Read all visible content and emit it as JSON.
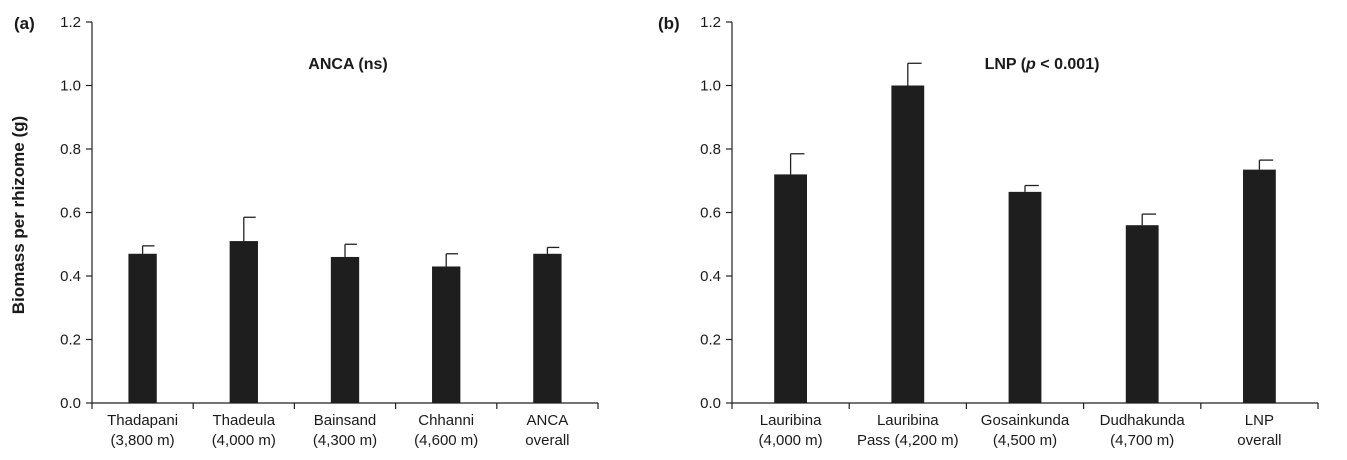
{
  "ylabel": "Biomass per rhizome (g)",
  "chart_data": [
    {
      "type": "bar",
      "panel_label": "(a)",
      "title": "ANCA (ns)",
      "title_parts": [
        "ANCA (ns)",
        "",
        ""
      ],
      "ylabel": "Biomass per rhizome (g)",
      "ylim": [
        0,
        1.2
      ],
      "yticks": [
        "0.0",
        "0.2",
        "0.4",
        "0.6",
        "0.8",
        "1.0",
        "1.2"
      ],
      "categories": [
        [
          "Thadapani",
          "(3,800 m)"
        ],
        [
          "Thadeula",
          "(4,000 m)"
        ],
        [
          "Bainsand",
          "(4,300 m)"
        ],
        [
          "Chhanni",
          "(4,600 m)"
        ],
        [
          "ANCA",
          "overall"
        ]
      ],
      "values": [
        0.47,
        0.51,
        0.46,
        0.43,
        0.47
      ],
      "errors": [
        0.025,
        0.075,
        0.04,
        0.04,
        0.02
      ],
      "bar_color": "#1e1e1e",
      "grid": false
    },
    {
      "type": "bar",
      "panel_label": "(b)",
      "title": "LNP (p < 0.001)",
      "title_parts": [
        "LNP (",
        "p",
        " < 0.001)"
      ],
      "ylabel": "",
      "ylim": [
        0,
        1.2
      ],
      "yticks": [
        "0.0",
        "0.2",
        "0.4",
        "0.6",
        "0.8",
        "1.0",
        "1.2"
      ],
      "categories": [
        [
          "Lauribina",
          "(4,000 m)"
        ],
        [
          "Lauribina",
          "Pass (4,200 m)"
        ],
        [
          "Gosainkunda",
          "(4,500 m)"
        ],
        [
          "Dudhakunda",
          "(4,700 m)"
        ],
        [
          "LNP",
          "overall"
        ]
      ],
      "values": [
        0.72,
        1.0,
        0.665,
        0.56,
        0.735
      ],
      "errors": [
        0.065,
        0.07,
        0.02,
        0.035,
        0.03
      ],
      "bar_color": "#1e1e1e",
      "grid": false
    }
  ]
}
